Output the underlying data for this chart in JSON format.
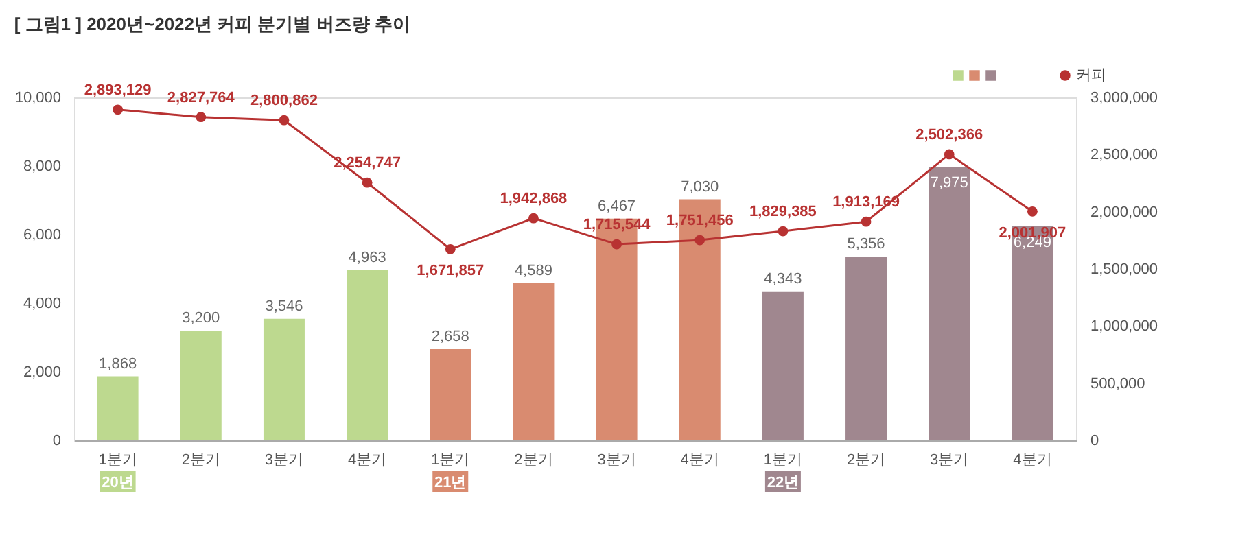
{
  "chart_data": {
    "type": "bar",
    "title": "[ 그림1 ] 2020년~2022년 커피 분기별 버즈량 추이",
    "categories": [
      "1분기",
      "2분기",
      "3분기",
      "4분기",
      "1분기",
      "2분기",
      "3분기",
      "4분기",
      "1분기",
      "2분기",
      "3분기",
      "4분기"
    ],
    "series": [
      {
        "colors": [
          "#bdd98f",
          "#bdd98f",
          "#bdd98f",
          "#bdd98f",
          "#d98b70",
          "#d98b70",
          "#d98b70",
          "#d98b70",
          "#a0878f",
          "#a0878f",
          "#a0878f",
          "#a0878f"
        ],
        "values": [
          1868,
          3200,
          3546,
          4963,
          2658,
          4589,
          6467,
          7030,
          4343,
          5356,
          7975,
          6249
        ],
        "value_labels": [
          "1,868",
          "3,200",
          "3,546",
          "4,963",
          "2,658",
          "4,589",
          "6,467",
          "7,030",
          "4,343",
          "5,356",
          "7,975",
          "6,249"
        ]
      },
      {
        "type": "line",
        "name": "커피",
        "color": "#b83232",
        "axis": "y2",
        "values": [
          2893129,
          2827764,
          2800862,
          2254747,
          1671857,
          1942868,
          1715544,
          1751456,
          1829385,
          1913169,
          2502366,
          2001907
        ],
        "value_labels": [
          "2,893,129",
          "2,827,764",
          "2,800,862",
          "2,254,747",
          "1,671,857",
          "1,942,868",
          "1,715,544",
          "1,751,456",
          "1,829,385",
          "1,913,169",
          "2,502,366",
          "2,001,907"
        ]
      }
    ],
    "ylim": [
      0,
      10000
    ],
    "yticks": [
      0,
      {
        "value": 2000,
        "label": "2,000"
      },
      {
        "value": 4000,
        "label": "4,000"
      },
      {
        "value": 6000,
        "label": "6,000"
      },
      {
        "value": 8000,
        "label": "8,000"
      },
      {
        "value": 10000,
        "label": "10,000"
      }
    ],
    "y2lim": [
      0,
      3000000
    ],
    "y2ticks": [
      0,
      {
        "value": 500000,
        "label": "500,000"
      },
      {
        "value": 1000000,
        "label": "1,000,000"
      },
      {
        "value": 1500000,
        "label": "1,500,000"
      },
      {
        "value": 2000000,
        "label": "2,000,000"
      },
      {
        "value": 2500000,
        "label": "2,500,000"
      },
      {
        "value": 3000000,
        "label": "3,000,000"
      }
    ],
    "annotations": [
      "20년",
      "21년",
      "22년"
    ],
    "grid": false,
    "legend": "top right",
    "marker": "circle"
  }
}
